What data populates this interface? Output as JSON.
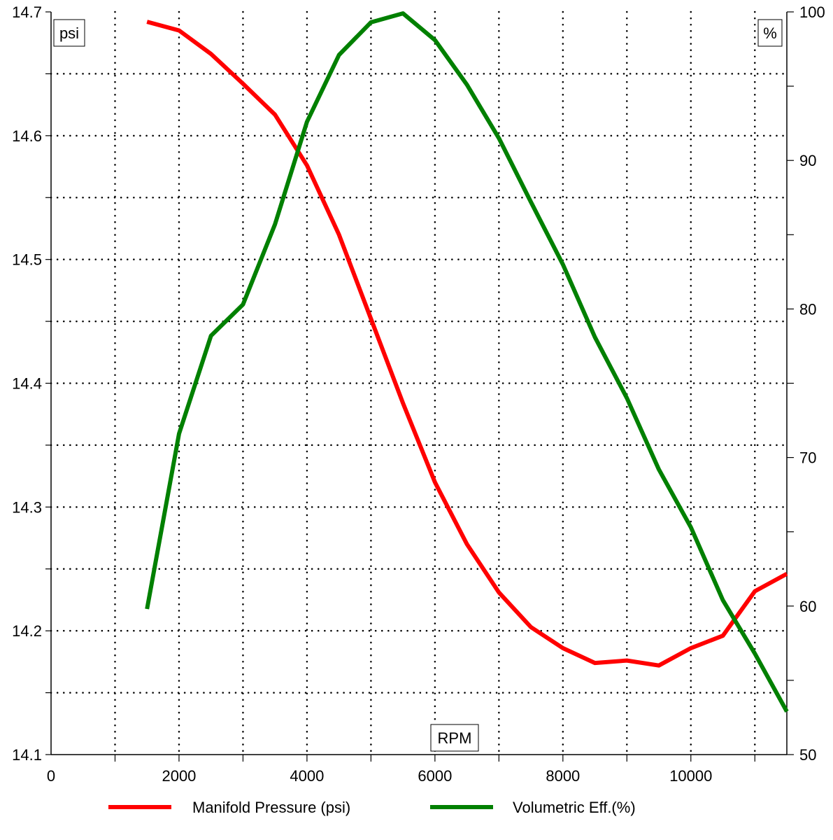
{
  "chart_data": {
    "type": "line",
    "xlabel": "RPM",
    "y_left_label": "psi",
    "y_right_label": "%",
    "xlim": [
      0,
      11500
    ],
    "y_left_lim": [
      14.1,
      14.7
    ],
    "y_right_lim": [
      50,
      100
    ],
    "x_ticks": [
      "0",
      "2000",
      "4000",
      "6000",
      "8000",
      "10000"
    ],
    "y_left_ticks": [
      "14.1",
      "14.2",
      "14.3",
      "14.4",
      "14.5",
      "14.6",
      "14.7"
    ],
    "y_right_ticks": [
      "50",
      "60",
      "70",
      "80",
      "90",
      "100"
    ],
    "grid": true,
    "legend_position": "bottom",
    "x": [
      1500,
      2000,
      2500,
      3000,
      3500,
      4000,
      4500,
      5000,
      5500,
      6000,
      6500,
      7000,
      7500,
      8000,
      8500,
      9000,
      9500,
      10000,
      10500,
      11000,
      11500
    ],
    "series": [
      {
        "name": "Manifold Pressure (psi)",
        "axis": "left",
        "color": "#ff0000",
        "values": [
          14.692,
          14.685,
          14.666,
          14.642,
          14.617,
          14.576,
          14.52,
          14.452,
          14.384,
          14.32,
          14.27,
          14.231,
          14.203,
          14.186,
          14.174,
          14.176,
          14.172,
          14.186,
          14.196,
          14.232,
          14.246
        ]
      },
      {
        "name": "Volumetric Eff.(%)",
        "axis": "right",
        "color": "#008000",
        "values": [
          59.8,
          71.6,
          78.2,
          80.3,
          85.7,
          92.6,
          97.1,
          99.3,
          99.9,
          98.1,
          95.1,
          91.5,
          87.2,
          83.0,
          78.1,
          74.0,
          69.2,
          65.3,
          60.4,
          56.8,
          52.9
        ]
      }
    ]
  }
}
